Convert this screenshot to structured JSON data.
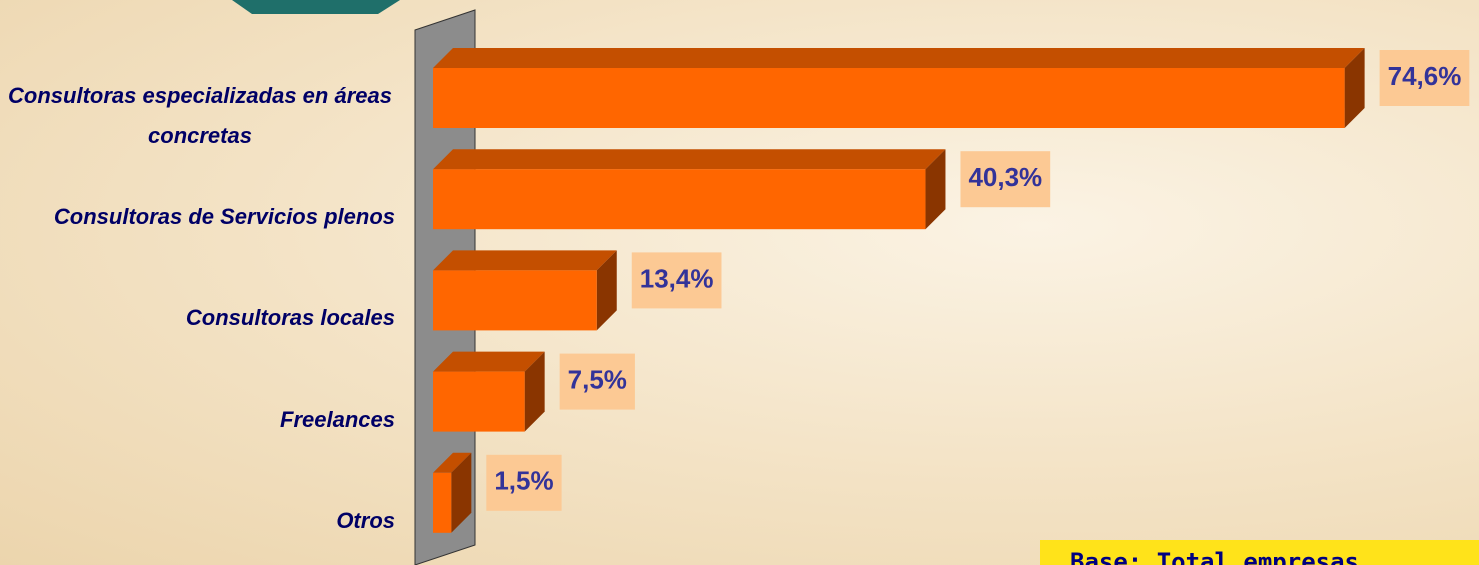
{
  "chart_data": {
    "type": "bar",
    "orientation": "horizontal",
    "categories": [
      "Consultoras especializadas en áreas concretas",
      "Consultoras de Servicios plenos",
      "Consultoras locales",
      "Freelances",
      "Otros"
    ],
    "values": [
      74.6,
      40.3,
      13.4,
      7.5,
      1.5
    ],
    "value_labels": [
      "74,6%",
      "40,3%",
      "13,4%",
      "7,5%",
      "1,5%"
    ],
    "color": "#ff6600",
    "annotation": "Base: Total empresas"
  }
}
